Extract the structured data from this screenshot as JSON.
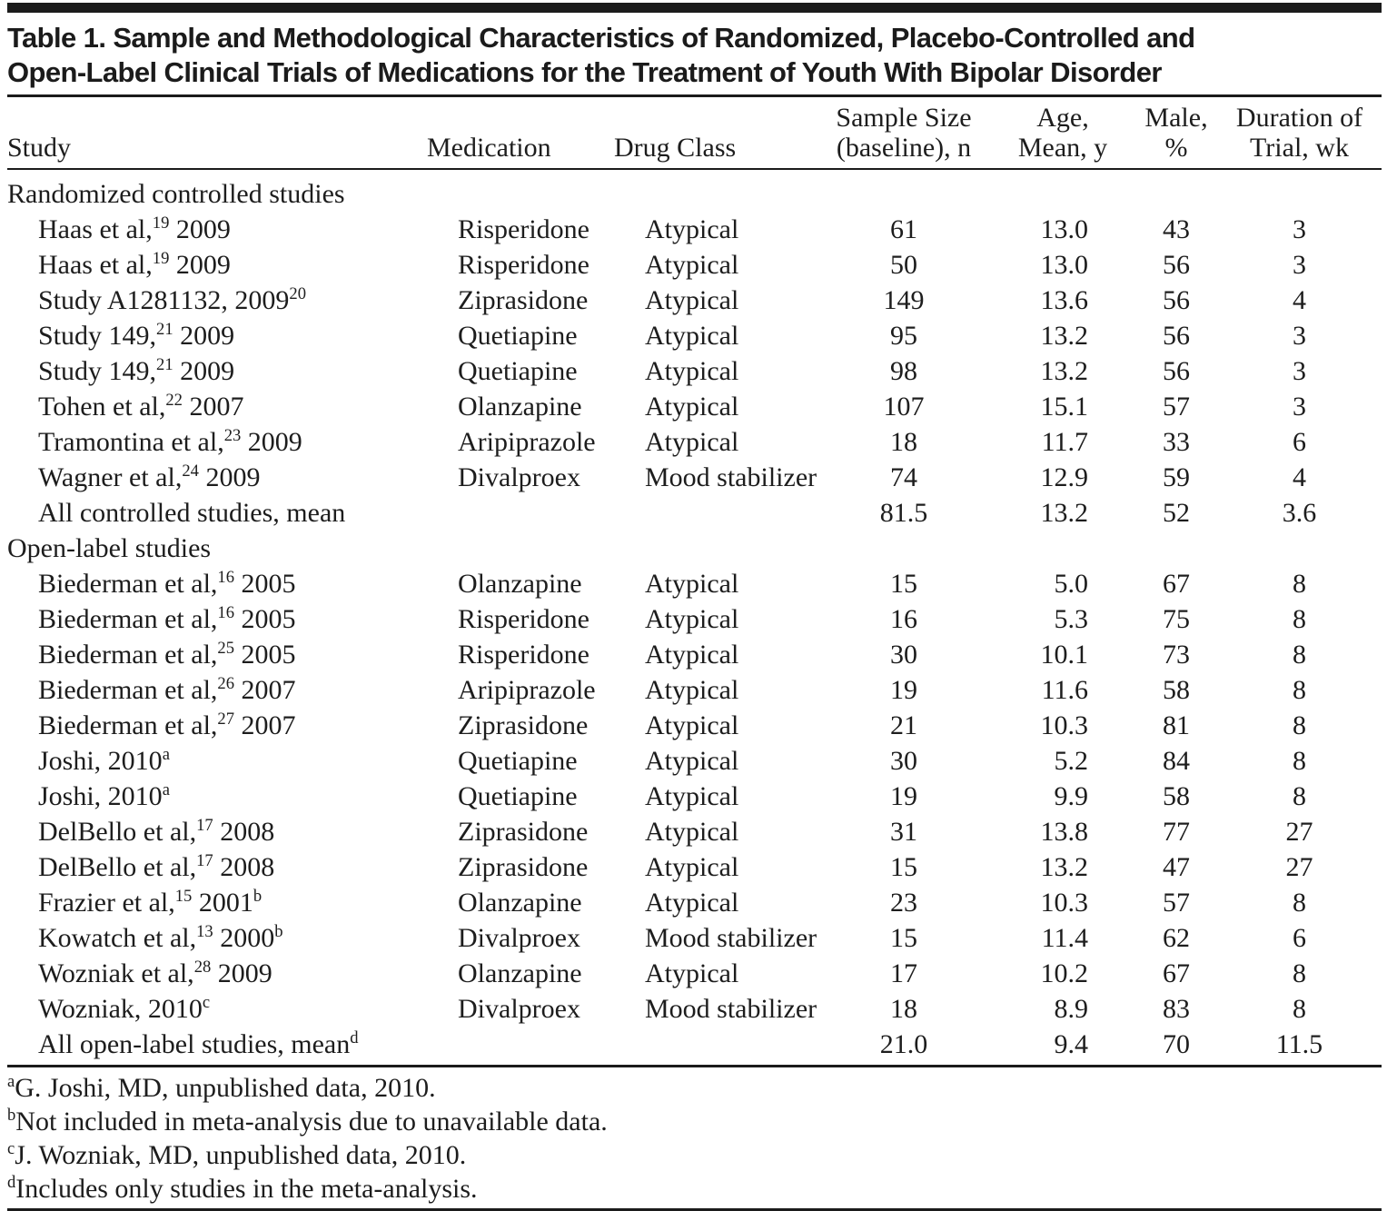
{
  "colors": {
    "ink": "#1b1b1b",
    "background": "#ffffff"
  },
  "title": "Table 1. Sample and Methodological Characteristics of Randomized, Placebo-Controlled and\nOpen-Label Clinical Trials of Medications for the Treatment of Youth With Bipolar Disorder",
  "title_lines": {
    "line1": "Table 1. Sample and Methodological Characteristics of Randomized, Placebo-Controlled and",
    "line2": "Open-Label Clinical Trials of Medications for the Treatment of Youth With Bipolar Disorder"
  },
  "table": {
    "header": {
      "study": "Study",
      "medication": "Medication",
      "drug_class": "Drug Class",
      "sample_line1": "Sample Size",
      "sample_line2": "(baseline), n",
      "age_line1": "Age,",
      "age_line2": "Mean, y",
      "male_line1": "Male,",
      "male_line2": "%",
      "duration_line1": "Duration of",
      "duration_line2": "Trial, wk"
    },
    "sections": [
      {
        "header": "Randomized controlled studies",
        "rows": [
          {
            "study": "Haas et al,^19^ 2009",
            "medication": "Risperidone",
            "drug_class": "Atypical",
            "sample": "61",
            "age": "13.0",
            "male": "43",
            "duration": "3"
          },
          {
            "study": "Haas et al,^19^ 2009",
            "medication": "Risperidone",
            "drug_class": "Atypical",
            "sample": "50",
            "age": "13.0",
            "male": "56",
            "duration": "3"
          },
          {
            "study": "Study A1281132, 2009^20^",
            "medication": "Ziprasidone",
            "drug_class": "Atypical",
            "sample": "149",
            "age": "13.6",
            "male": "56",
            "duration": "4"
          },
          {
            "study": "Study 149,^21^ 2009",
            "medication": "Quetiapine",
            "drug_class": "Atypical",
            "sample": "95",
            "age": "13.2",
            "male": "56",
            "duration": "3"
          },
          {
            "study": "Study 149,^21^ 2009",
            "medication": "Quetiapine",
            "drug_class": "Atypical",
            "sample": "98",
            "age": "13.2",
            "male": "56",
            "duration": "3"
          },
          {
            "study": "Tohen et al,^22^ 2007",
            "medication": "Olanzapine",
            "drug_class": "Atypical",
            "sample": "107",
            "age": "15.1",
            "male": "57",
            "duration": "3"
          },
          {
            "study": "Tramontina et al,^23^ 2009",
            "medication": "Aripiprazole",
            "drug_class": "Atypical",
            "sample": "18",
            "age": "11.7",
            "male": "33",
            "duration": "6"
          },
          {
            "study": "Wagner et al,^24^ 2009",
            "medication": "Divalproex",
            "drug_class": "Mood stabilizer",
            "sample": "74",
            "age": "12.9",
            "male": "59",
            "duration": "4"
          },
          {
            "study": "All controlled studies, mean",
            "medication": "",
            "drug_class": "",
            "sample": "81.5",
            "age": "13.2",
            "male": "52",
            "duration": "3.6"
          }
        ]
      },
      {
        "header": "Open-label studies",
        "rows": [
          {
            "study": "Biederman et al,^16^ 2005",
            "medication": "Olanzapine",
            "drug_class": "Atypical",
            "sample": "15",
            "age": "5.0",
            "male": "67",
            "duration": "8"
          },
          {
            "study": "Biederman et al,^16^ 2005",
            "medication": "Risperidone",
            "drug_class": "Atypical",
            "sample": "16",
            "age": "5.3",
            "male": "75",
            "duration": "8"
          },
          {
            "study": "Biederman et al,^25^ 2005",
            "medication": "Risperidone",
            "drug_class": "Atypical",
            "sample": "30",
            "age": "10.1",
            "male": "73",
            "duration": "8"
          },
          {
            "study": "Biederman et al,^26^ 2007",
            "medication": "Aripiprazole",
            "drug_class": "Atypical",
            "sample": "19",
            "age": "11.6",
            "male": "58",
            "duration": "8"
          },
          {
            "study": "Biederman et al,^27^ 2007",
            "medication": "Ziprasidone",
            "drug_class": "Atypical",
            "sample": "21",
            "age": "10.3",
            "male": "81",
            "duration": "8"
          },
          {
            "study": "Joshi, 2010^a^",
            "medication": "Quetiapine",
            "drug_class": "Atypical",
            "sample": "30",
            "age": "5.2",
            "male": "84",
            "duration": "8"
          },
          {
            "study": "Joshi, 2010^a^",
            "medication": "Quetiapine",
            "drug_class": "Atypical",
            "sample": "19",
            "age": "9.9",
            "male": "58",
            "duration": "8"
          },
          {
            "study": "DelBello et al,^17^ 2008",
            "medication": "Ziprasidone",
            "drug_class": "Atypical",
            "sample": "31",
            "age": "13.8",
            "male": "77",
            "duration": "27"
          },
          {
            "study": "DelBello et al,^17^ 2008",
            "medication": "Ziprasidone",
            "drug_class": "Atypical",
            "sample": "15",
            "age": "13.2",
            "male": "47",
            "duration": "27"
          },
          {
            "study": "Frazier et al,^15^ 2001^b^",
            "medication": "Olanzapine",
            "drug_class": "Atypical",
            "sample": "23",
            "age": "10.3",
            "male": "57",
            "duration": "8"
          },
          {
            "study": "Kowatch et al,^13^ 2000^b^",
            "medication": "Divalproex",
            "drug_class": "Mood stabilizer",
            "sample": "15",
            "age": "11.4",
            "male": "62",
            "duration": "6"
          },
          {
            "study": "Wozniak et al,^28^ 2009",
            "medication": "Olanzapine",
            "drug_class": "Atypical",
            "sample": "17",
            "age": "10.2",
            "male": "67",
            "duration": "8"
          },
          {
            "study": "Wozniak, 2010^c^",
            "medication": "Divalproex",
            "drug_class": "Mood stabilizer",
            "sample": "18",
            "age": "8.9",
            "male": "83",
            "duration": "8"
          },
          {
            "study": "All open-label studies, mean^d^",
            "medication": "",
            "drug_class": "",
            "sample": "21.0",
            "age": "9.4",
            "male": "70",
            "duration": "11.5"
          }
        ]
      }
    ]
  },
  "footnotes": [
    "^a^G. Joshi, MD, unpublished data, 2010.",
    "^b^Not included in meta-analysis due to unavailable data.",
    "^c^J. Wozniak, MD, unpublished data, 2010.",
    "^d^Includes only studies in the meta-analysis."
  ]
}
